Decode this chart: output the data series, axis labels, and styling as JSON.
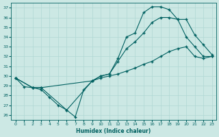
{
  "xlabel": "Humidex (Indice chaleur)",
  "bg_color": "#cce8e4",
  "grid_color": "#b0d8d4",
  "line_color": "#006060",
  "xlim": [
    -0.5,
    23.5
  ],
  "ylim": [
    25.5,
    37.5
  ],
  "yticks": [
    26,
    27,
    28,
    29,
    30,
    31,
    32,
    33,
    34,
    35,
    36,
    37
  ],
  "xticks": [
    0,
    1,
    2,
    3,
    4,
    5,
    6,
    7,
    8,
    9,
    10,
    11,
    12,
    13,
    14,
    15,
    16,
    17,
    18,
    19,
    20,
    21,
    22,
    23
  ],
  "line1_x": [
    0,
    1,
    2,
    3,
    4,
    5,
    6,
    7,
    8,
    9,
    10,
    11,
    12,
    13,
    14,
    15,
    16,
    17,
    18,
    19,
    20,
    21,
    22,
    23
  ],
  "line1_y": [
    29.8,
    28.9,
    28.8,
    28.6,
    27.8,
    27.0,
    26.5,
    25.8,
    28.6,
    29.5,
    30.0,
    30.2,
    31.8,
    34.0,
    34.4,
    36.5,
    37.1,
    37.1,
    36.8,
    35.8,
    34.0,
    33.0,
    32.0,
    32.0
  ],
  "line2_x": [
    0,
    2,
    3,
    6,
    9,
    10,
    11,
    12,
    13,
    14,
    15,
    16,
    17,
    18,
    19,
    20,
    21,
    22,
    23
  ],
  "line2_y": [
    29.8,
    28.8,
    28.8,
    26.5,
    29.5,
    30.0,
    30.2,
    31.5,
    32.8,
    33.5,
    34.4,
    35.5,
    36.0,
    36.0,
    35.8,
    35.8,
    34.2,
    33.2,
    32.2
  ],
  "line3_x": [
    0,
    2,
    3,
    9,
    10,
    11,
    12,
    13,
    14,
    15,
    16,
    17,
    18,
    19,
    20,
    21,
    22,
    23
  ],
  "line3_y": [
    29.8,
    28.8,
    28.8,
    29.5,
    29.8,
    30.0,
    30.2,
    30.5,
    30.8,
    31.2,
    31.5,
    32.0,
    32.5,
    32.8,
    33.0,
    32.0,
    31.8,
    32.0
  ]
}
